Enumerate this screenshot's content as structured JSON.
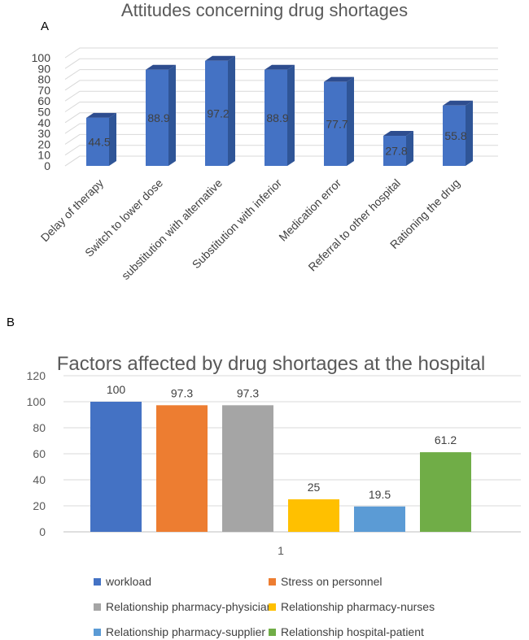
{
  "figure": {
    "panel_a_letter": "A",
    "panel_b_letter": "B"
  },
  "chart_data": [
    {
      "type": "bar",
      "title": "Attitudes concerning drug shortages",
      "categories": [
        "Delay of therapy",
        "Switch to lower dose",
        "substitution with alternative",
        "Substitution with inferior",
        "Medication error",
        "Referral to other hospital",
        "Rationing the drug"
      ],
      "values": [
        44.5,
        88.9,
        97.2,
        88.9,
        77.7,
        27.8,
        55.8
      ],
      "ylim": [
        0,
        100
      ],
      "yticks": [
        0,
        10,
        20,
        30,
        40,
        50,
        60,
        70,
        80,
        90,
        100
      ],
      "grid": true,
      "style": "3d",
      "colors": {
        "front": "#4472c4",
        "side": "#2f5597",
        "top": "#2e4d8f"
      }
    },
    {
      "type": "bar",
      "title": "Factors affected by drug shortages at the hospital",
      "categories": [
        "1"
      ],
      "series": [
        {
          "name": "workload",
          "values": [
            100
          ],
          "color": "#4472c4"
        },
        {
          "name": "Stress on personnel",
          "values": [
            97.3
          ],
          "color": "#ed7d31"
        },
        {
          "name": "Relationship pharmacy-physician",
          "values": [
            97.3
          ],
          "color": "#a5a5a5"
        },
        {
          "name": "Relationship pharmacy-nurses",
          "values": [
            25
          ],
          "color": "#ffc000"
        },
        {
          "name": "Relationship pharmacy-supplier",
          "values": [
            19.5
          ],
          "color": "#5b9bd5"
        },
        {
          "name": "Relationship hospital-patient",
          "values": [
            61.2
          ],
          "color": "#70ad47"
        }
      ],
      "ylim": [
        0,
        120
      ],
      "yticks": [
        0,
        20,
        40,
        60,
        80,
        100,
        120
      ],
      "grid": true,
      "legend": "bottom"
    }
  ]
}
